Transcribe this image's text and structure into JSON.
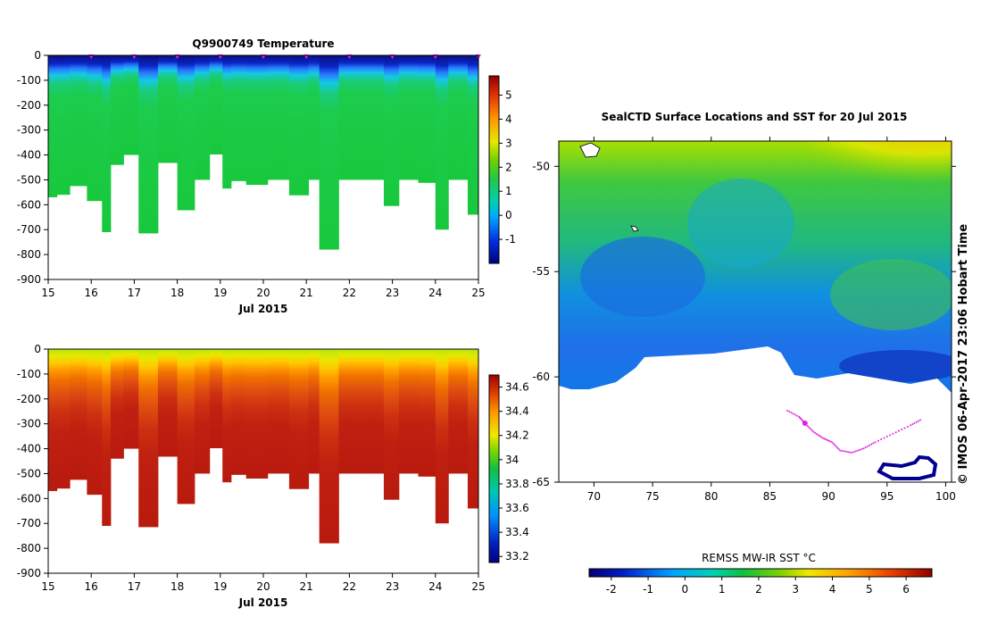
{
  "chart_data": [
    {
      "type": "heatmap",
      "title": "Q9900749  Temperature",
      "xlabel": "Jul 2015",
      "ylabel": "",
      "xlim": [
        15,
        25
      ],
      "ylim": [
        -900,
        0
      ],
      "xticks": [
        "15",
        "16",
        "17",
        "18",
        "19",
        "20",
        "21",
        "22",
        "23",
        "24",
        "25"
      ],
      "yticks": [
        "0",
        "-100",
        "-200",
        "-300",
        "-400",
        "-500",
        "-600",
        "-700",
        "-800",
        "-900"
      ],
      "colorbar": {
        "min": -2,
        "max": 5.8,
        "ticks": [
          "-1",
          "0",
          "1",
          "2",
          "3",
          "4",
          "5"
        ]
      },
      "profile_markers_x": [
        16,
        17,
        18,
        19,
        20,
        21,
        22,
        23,
        24,
        25
      ],
      "profiles": [
        {
          "x0": 15.0,
          "x1": 15.2,
          "max_depth": 570
        },
        {
          "x0": 15.2,
          "x1": 15.5,
          "max_depth": 560
        },
        {
          "x0": 15.5,
          "x1": 15.9,
          "max_depth": 525
        },
        {
          "x0": 15.9,
          "x1": 16.25,
          "max_depth": 585
        },
        {
          "x0": 16.25,
          "x1": 16.45,
          "max_depth": 710
        },
        {
          "x0": 16.45,
          "x1": 16.75,
          "max_depth": 440
        },
        {
          "x0": 16.75,
          "x1": 17.1,
          "max_depth": 400
        },
        {
          "x0": 17.1,
          "x1": 17.55,
          "max_depth": 715
        },
        {
          "x0": 17.55,
          "x1": 18.0,
          "max_depth": 432
        },
        {
          "x0": 18.0,
          "x1": 18.4,
          "max_depth": 622
        },
        {
          "x0": 18.4,
          "x1": 18.75,
          "max_depth": 500
        },
        {
          "x0": 18.75,
          "x1": 19.05,
          "max_depth": 398
        },
        {
          "x0": 19.05,
          "x1": 19.25,
          "max_depth": 535
        },
        {
          "x0": 19.25,
          "x1": 19.6,
          "max_depth": 505
        },
        {
          "x0": 19.6,
          "x1": 20.1,
          "max_depth": 520
        },
        {
          "x0": 20.1,
          "x1": 20.6,
          "max_depth": 500
        },
        {
          "x0": 20.6,
          "x1": 21.05,
          "max_depth": 562
        },
        {
          "x0": 21.05,
          "x1": 21.3,
          "max_depth": 500
        },
        {
          "x0": 21.3,
          "x1": 21.75,
          "max_depth": 780
        },
        {
          "x0": 21.75,
          "x1": 22.4,
          "max_depth": 500
        },
        {
          "x0": 22.4,
          "x1": 22.8,
          "max_depth": 500
        },
        {
          "x0": 22.8,
          "x1": 23.15,
          "max_depth": 605
        },
        {
          "x0": 23.15,
          "x1": 23.6,
          "max_depth": 500
        },
        {
          "x0": 23.6,
          "x1": 24.0,
          "max_depth": 512
        },
        {
          "x0": 24.0,
          "x1": 24.3,
          "max_depth": 700
        },
        {
          "x0": 24.3,
          "x1": 24.75,
          "max_depth": 500
        },
        {
          "x0": 24.75,
          "x1": 25.0,
          "max_depth": 640
        }
      ]
    },
    {
      "type": "heatmap",
      "title": "",
      "xlabel": "Jul 2015",
      "ylabel": "",
      "xlim": [
        15,
        25
      ],
      "ylim": [
        -900,
        0
      ],
      "xticks": [
        "15",
        "16",
        "17",
        "18",
        "19",
        "20",
        "21",
        "22",
        "23",
        "24",
        "25"
      ],
      "yticks": [
        "0",
        "-100",
        "-200",
        "-300",
        "-400",
        "-500",
        "-600",
        "-700",
        "-800",
        "-900"
      ],
      "colorbar": {
        "min": 33.15,
        "max": 34.7,
        "ticks": [
          "33.2",
          "33.4",
          "33.6",
          "33.8",
          "34",
          "34.2",
          "34.4",
          "34.6"
        ]
      }
    },
    {
      "type": "heatmap",
      "title": "SealCTD Surface Locations and SST for 20 Jul 2015",
      "xlabel": "",
      "ylabel": "",
      "xlim": [
        67,
        100.5
      ],
      "ylim": [
        -65,
        -48.8
      ],
      "xticks": [
        "70",
        "75",
        "80",
        "85",
        "90",
        "95",
        "100"
      ],
      "yticks": [
        "-50",
        "-55",
        "-60",
        "-65"
      ],
      "colorbar": {
        "label": "REMSS MW-IR SST °C",
        "min": -2.6,
        "max": 6.7,
        "ticks": [
          "-2",
          "-1",
          "0",
          "1",
          "2",
          "3",
          "4",
          "5",
          "6"
        ]
      },
      "ice_edge_latitude": -60,
      "seal_track": [
        [
          86.5,
          -61.6
        ],
        [
          87.5,
          -61.9
        ],
        [
          88.0,
          -62.2
        ],
        [
          88.7,
          -62.6
        ],
        [
          89.5,
          -62.9
        ],
        [
          90.3,
          -63.1
        ],
        [
          91.0,
          -63.5
        ],
        [
          92.0,
          -63.6
        ],
        [
          93.0,
          -63.4
        ],
        [
          94.0,
          -63.1
        ],
        [
          95.5,
          -62.7
        ],
        [
          97.0,
          -62.3
        ],
        [
          98.0,
          -62.0
        ]
      ]
    }
  ],
  "credit": "© IMOS 06-Apr-2017 23:06 Hobart Time"
}
